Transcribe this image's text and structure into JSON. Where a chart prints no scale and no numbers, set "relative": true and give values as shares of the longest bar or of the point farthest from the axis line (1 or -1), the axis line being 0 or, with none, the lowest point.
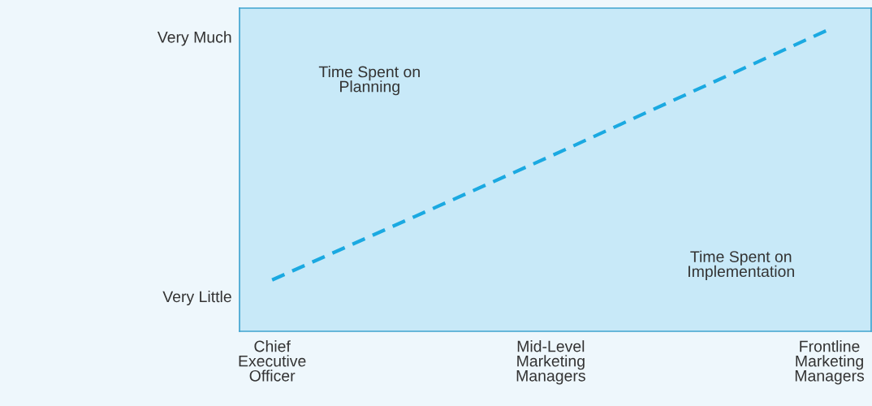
{
  "chart_data": {
    "type": "line",
    "relative": true,
    "categories": [
      "Chief\nExecutive\nOfficer",
      "Mid-Level\nMarketing\nManagers",
      "Frontline\nMarketing\nManagers"
    ],
    "series": [
      {
        "color": "#1ba9e1",
        "values": [
          0.17,
          0.58,
          1
        ]
      }
    ],
    "line_style": "dashed",
    "marker": "none",
    "grid": false,
    "annotations": [
      "Very Much",
      "Very Little",
      "Time Spent on\nPlanning",
      "Time Spent on\nImplementation"
    ]
  }
}
